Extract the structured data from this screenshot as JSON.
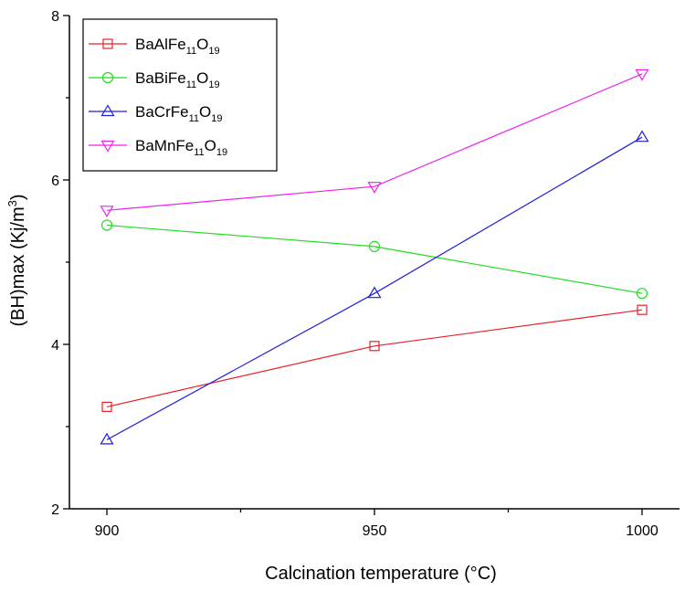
{
  "chart_data": {
    "type": "line",
    "xlabel": "Calcination temperature (°C)",
    "ylabel": {
      "main": "(BH)max (Kj/m",
      "sup": "3",
      "close": ")"
    },
    "x": [
      900,
      950,
      1000
    ],
    "xlim": [
      893,
      1007
    ],
    "ylim": [
      2,
      8
    ],
    "x_ticks": [
      900,
      950,
      1000
    ],
    "x_minor_ticks": [
      925,
      975
    ],
    "y_ticks": [
      2,
      4,
      6,
      8
    ],
    "y_minor_ticks": [
      3,
      5,
      7
    ],
    "legend_position": "top-left",
    "grid": false,
    "series": [
      {
        "name": "BaAlFe11O19",
        "label": {
          "base": "BaAlFe",
          "sub1": "11",
          "mid": "O",
          "sub2": "19"
        },
        "color": "#e8212b",
        "marker": "square",
        "values": [
          3.24,
          3.98,
          4.42
        ]
      },
      {
        "name": "BaBiFe11O19",
        "label": {
          "base": "BaBiFe",
          "sub1": "11",
          "mid": "O",
          "sub2": "19"
        },
        "color": "#22dd22",
        "marker": "circle",
        "values": [
          5.45,
          5.19,
          4.62
        ]
      },
      {
        "name": "BaCrFe11O19",
        "label": {
          "base": "BaCrFe",
          "sub1": "11",
          "mid": "O",
          "sub2": "19"
        },
        "color": "#1f1fd6",
        "marker": "triangle-up",
        "values": [
          2.84,
          4.62,
          6.52
        ]
      },
      {
        "name": "BaMnFe11O19",
        "label": {
          "base": "BaMnFe",
          "sub1": "11",
          "mid": "O",
          "sub2": "19"
        },
        "color": "#ee22ee",
        "marker": "triangle-down",
        "values": [
          5.63,
          5.92,
          7.29
        ]
      }
    ]
  }
}
